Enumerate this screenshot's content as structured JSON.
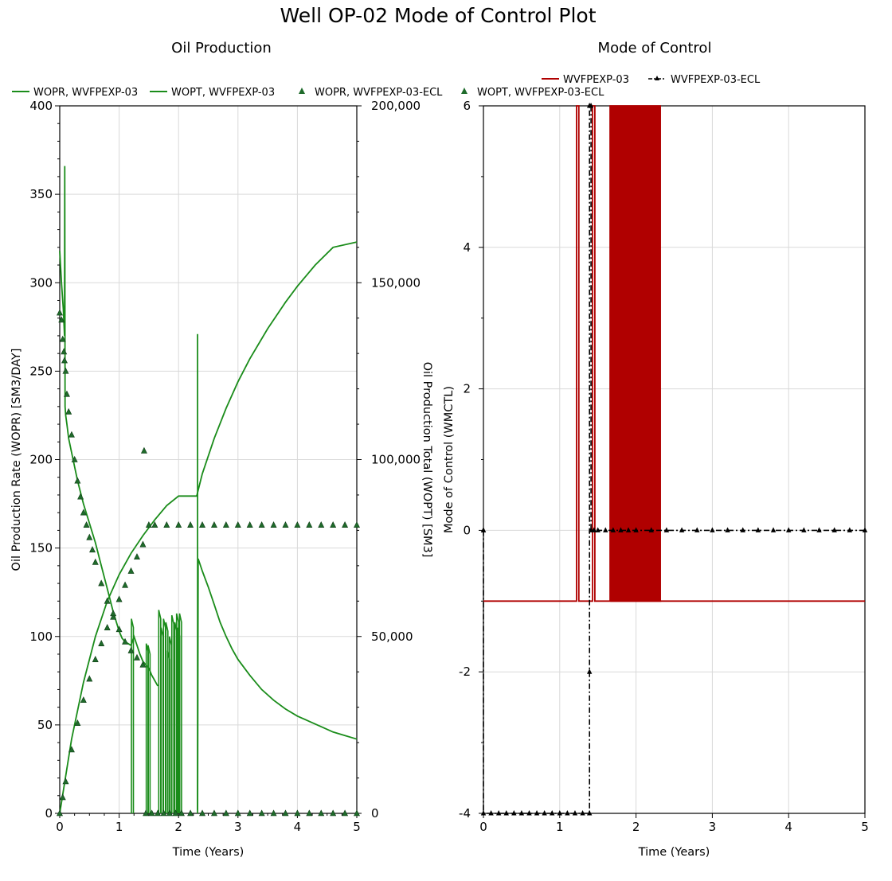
{
  "page": {
    "title": "Well OP-02 Mode of Control Plot"
  },
  "colors": {
    "sim": "#1a8c1a",
    "ecl": "#1f6b2b",
    "moc_sim": "#b00000",
    "moc_ecl": "#000000"
  },
  "chart_data": [
    {
      "type": "line",
      "title": "Oil Production",
      "xlabel": "Time (Years)",
      "ylabel": "Oil Production Rate (WOPR) [SM3/DAY]",
      "y2label": "Oil Production Total (WOPT) [SM3]",
      "xlim": [
        0,
        5
      ],
      "ylim": [
        0,
        400
      ],
      "y2lim": [
        0,
        200000
      ],
      "xticks": [
        "0",
        "1",
        "2",
        "3",
        "4",
        "5"
      ],
      "yticks": [
        "0",
        "50",
        "100",
        "150",
        "200",
        "250",
        "300",
        "350",
        "400"
      ],
      "y2ticks": [
        "0",
        "50,000",
        "100,000",
        "150,000",
        "200,000"
      ],
      "grid": true,
      "legend_position": "top",
      "series": [
        {
          "name": "WOPR, WVFPEXP-03",
          "axis": "left",
          "style": "line",
          "x": [
            0,
            0.03,
            0.06,
            0.08,
            0.085,
            0.09,
            0.1,
            0.12,
            0.15,
            0.2,
            0.3,
            0.4,
            0.5,
            0.6,
            0.7,
            0.8,
            0.9,
            1.0,
            1.05,
            1.1,
            1.2,
            1.25,
            1.3,
            1.35,
            1.4,
            1.5,
            1.55,
            1.6,
            1.65
          ],
          "y": [
            318,
            300,
            285,
            270,
            366,
            230,
            225,
            220,
            212,
            204,
            188,
            175,
            164,
            153,
            140,
            127,
            114,
            103,
            99,
            97,
            95,
            100,
            95,
            90,
            86,
            82,
            78,
            75,
            72
          ]
        },
        {
          "name": "WOPR, WVFPEXP-03 (spikes)",
          "axis": "left",
          "style": "spikes",
          "x": [
            1.22,
            1.47,
            1.5,
            1.68,
            1.72,
            1.76,
            1.8,
            1.83,
            1.86,
            1.9,
            1.95,
            1.98,
            2.0,
            2.03
          ],
          "y": [
            110,
            96,
            95,
            115,
            105,
            110,
            108,
            92,
            100,
            112,
            108,
            113,
            105,
            113
          ]
        },
        {
          "name": "WOPR, WVFPEXP-03 (late)",
          "axis": "left",
          "style": "line",
          "x": [
            2.32,
            2.33,
            2.4,
            2.5,
            2.6,
            2.7,
            2.8,
            2.9,
            3.0,
            3.2,
            3.4,
            3.6,
            3.8,
            4.0,
            4.2,
            4.4,
            4.6,
            4.8,
            5.0
          ],
          "y": [
            2,
            144,
            137,
            128,
            118,
            108,
            100,
            93,
            87,
            78,
            70,
            64,
            59,
            55,
            52,
            49,
            46,
            44,
            42
          ]
        },
        {
          "name": "WOPT, WVFPEXP-03",
          "axis": "right",
          "style": "line",
          "x": [
            0,
            0.2,
            0.4,
            0.6,
            0.8,
            1.0,
            1.2,
            1.4,
            1.6,
            1.8,
            2.0,
            2.3,
            2.31,
            2.4,
            2.6,
            2.8,
            3.0,
            3.2,
            3.5,
            3.8,
            4.0,
            4.3,
            4.6,
            5.0
          ],
          "y": [
            0,
            21000,
            37000,
            50000,
            60000,
            67500,
            73500,
            78500,
            83000,
            87000,
            89700,
            89700,
            90000,
            96000,
            106000,
            114500,
            122000,
            128500,
            137000,
            144500,
            149000,
            155000,
            160000,
            161500
          ]
        },
        {
          "name": "WOPR, WVFPEXP-03-ECL",
          "axis": "left",
          "style": "markers",
          "x": [
            0,
            0.03,
            0.05,
            0.07,
            0.08,
            0.1,
            0.12,
            0.15,
            0.2,
            0.25,
            0.3,
            0.35,
            0.4,
            0.45,
            0.5,
            0.55,
            0.6,
            0.7,
            0.8,
            0.9,
            1.0,
            1.1,
            1.2,
            1.3,
            1.4,
            1.42
          ],
          "y": [
            283,
            279,
            268,
            261,
            256,
            250,
            237,
            227,
            214,
            200,
            188,
            179,
            170,
            163,
            156,
            149,
            142,
            130,
            120,
            111,
            104,
            97,
            92,
            88,
            84,
            205
          ]
        },
        {
          "name": "WOPT, WVFPEXP-03-ECL",
          "axis": "right",
          "style": "markers",
          "x": [
            0,
            0.05,
            0.1,
            0.2,
            0.3,
            0.4,
            0.5,
            0.6,
            0.7,
            0.8,
            0.9,
            1.0,
            1.1,
            1.2,
            1.3,
            1.4,
            1.5,
            1.6,
            1.8,
            2.0,
            2.2,
            2.4,
            2.6,
            2.8,
            3.0,
            3.2,
            3.4,
            3.6,
            3.8,
            4.0,
            4.2,
            4.4,
            4.6,
            4.8,
            5.0
          ],
          "y": [
            0,
            4500,
            9000,
            18000,
            25500,
            32000,
            38000,
            43500,
            48000,
            52500,
            56500,
            60500,
            64500,
            68500,
            72500,
            76000,
            81500,
            81500,
            81500,
            81500,
            81500,
            81500,
            81500,
            81500,
            81500,
            81500,
            81500,
            81500,
            81500,
            81500,
            81500,
            81500,
            81500,
            81500,
            81500
          ]
        },
        {
          "name": "WOPR, WVFPEXP-03-ECL (zero)",
          "axis": "left",
          "style": "markers",
          "x": [
            1.45,
            1.55,
            1.65,
            1.75,
            1.85,
            1.95,
            2.05,
            2.2,
            2.4,
            2.6,
            2.8,
            3.0,
            3.2,
            3.4,
            3.6,
            3.8,
            4.0,
            4.2,
            4.4,
            4.6,
            4.8,
            5.0
          ],
          "y": [
            0,
            0,
            0,
            0,
            0,
            0,
            0,
            0,
            0,
            0,
            0,
            0,
            0,
            0,
            0,
            0,
            0,
            0,
            0,
            0,
            0,
            0
          ]
        }
      ],
      "legend": [
        "WOPR, WVFPEXP-03",
        "WOPT, WVFPEXP-03",
        "WOPR, WVFPEXP-03-ECL",
        "WOPT, WVFPEXP-03-ECL"
      ]
    },
    {
      "type": "line",
      "title": "Mode of Control",
      "xlabel": "Time (Years)",
      "ylabel": "Mode of Control (WMCTL)",
      "xlim": [
        0,
        5
      ],
      "ylim": [
        -4,
        6
      ],
      "xticks": [
        "0",
        "1",
        "2",
        "3",
        "4",
        "5"
      ],
      "yticks": [
        "-4",
        "-2",
        "0",
        "2",
        "4",
        "6"
      ],
      "grid": true,
      "legend_position": "top",
      "series": [
        {
          "name": "WVFPEXP-03",
          "style": "step",
          "x": [
            0,
            1.22,
            1.22,
            1.25,
            1.25,
            1.43,
            1.43,
            1.46,
            1.46,
            1.5,
            1.5,
            5.0
          ],
          "y": [
            -1,
            -1,
            6,
            6,
            -1,
            -1,
            6,
            6,
            -1,
            -1,
            -1,
            -1
          ]
        },
        {
          "name": "WVFPEXP-03 (switching)",
          "style": "square-wave",
          "x0": 1.66,
          "x1": 2.33,
          "low": -1,
          "high": 6,
          "count": 28
        },
        {
          "name": "WVFPEXP-03-ECL",
          "style": "step-markers",
          "x": [
            0,
            0,
            0,
            0.1,
            0.2,
            0.3,
            0.4,
            0.5,
            0.6,
            0.7,
            0.8,
            0.9,
            1.0,
            1.1,
            1.2,
            1.3,
            1.39,
            1.39,
            1.39,
            1.41,
            1.41,
            1.45,
            1.5,
            1.6,
            1.7,
            1.8,
            1.9,
            2.0,
            2.2,
            2.4,
            2.6,
            2.8,
            3.0,
            3.2,
            3.4,
            3.6,
            3.8,
            4.0,
            4.2,
            4.4,
            4.6,
            4.8,
            5.0
          ],
          "y": [
            0,
            0,
            -4,
            -4,
            -4,
            -4,
            -4,
            -4,
            -4,
            -4,
            -4,
            -4,
            -4,
            -4,
            -4,
            -4,
            -4,
            -2,
            6,
            6,
            0,
            0,
            0,
            0,
            0,
            0,
            0,
            0,
            0,
            0,
            0,
            0,
            0,
            0,
            0,
            0,
            0,
            0,
            0,
            0,
            0,
            0,
            0
          ]
        }
      ],
      "legend": [
        "WVFPEXP-03",
        "WVFPEXP-03-ECL"
      ]
    }
  ]
}
